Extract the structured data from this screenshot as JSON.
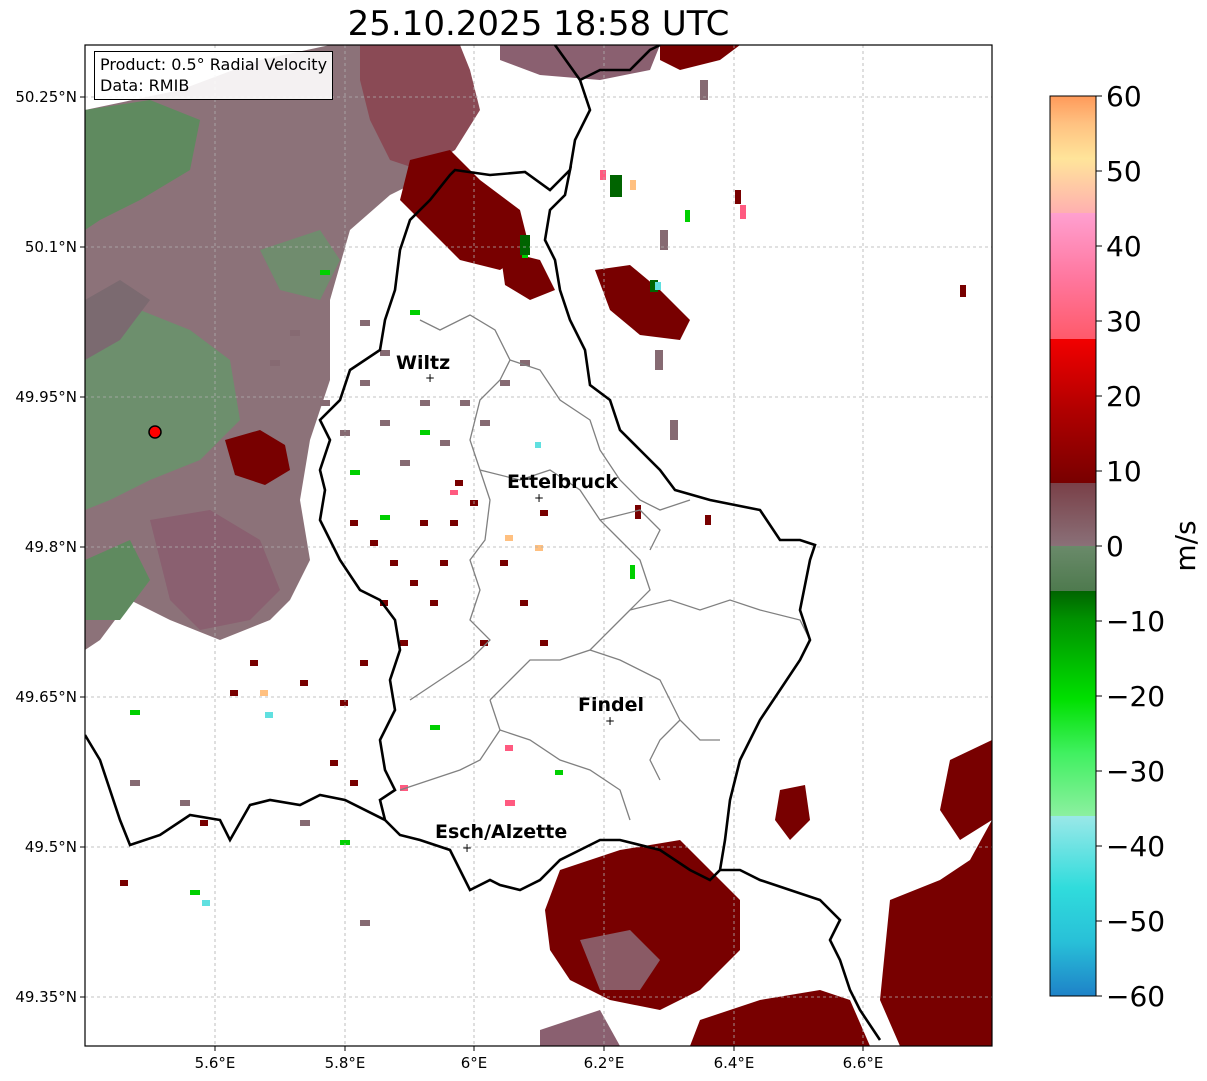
{
  "title": "25.10.2025 18:58 UTC",
  "info": {
    "product": "Product: 0.5° Radial Velocity",
    "data": "Data: RMIB"
  },
  "colorbar": {
    "label": "m/s",
    "ticks": [
      "60",
      "50",
      "40",
      "30",
      "20",
      "10",
      "0",
      "−10",
      "−20",
      "−30",
      "−40",
      "−50",
      "−60"
    ],
    "colors": {
      "positive_high": "#ff9a5a",
      "positive_mid": "#ffe49a",
      "pink": "#ff8cc8",
      "red": "#f20000",
      "dark_red": "#780000",
      "neutral_pos": "#8a6a72",
      "neutral_neg": "#6a8a6a",
      "dark_green": "#006400",
      "green": "#00e000",
      "light_green": "#8cf0a0",
      "cyan": "#30dcdc",
      "blue": "#1e82c8"
    }
  },
  "axes": {
    "y_ticks": [
      "50.25°N",
      "50.1°N",
      "49.95°N",
      "49.8°N",
      "49.65°N",
      "49.5°N",
      "49.35°N"
    ],
    "x_ticks": [
      "5.6°E",
      "5.8°E",
      "6°E",
      "6.2°E",
      "6.4°E",
      "6.6°E"
    ]
  },
  "cities": [
    {
      "name": "Wiltz"
    },
    {
      "name": "Ettelbruck"
    },
    {
      "name": "Findel"
    },
    {
      "name": "Esch/Alzette"
    }
  ],
  "radar_site": {
    "color": "#ff0000"
  }
}
